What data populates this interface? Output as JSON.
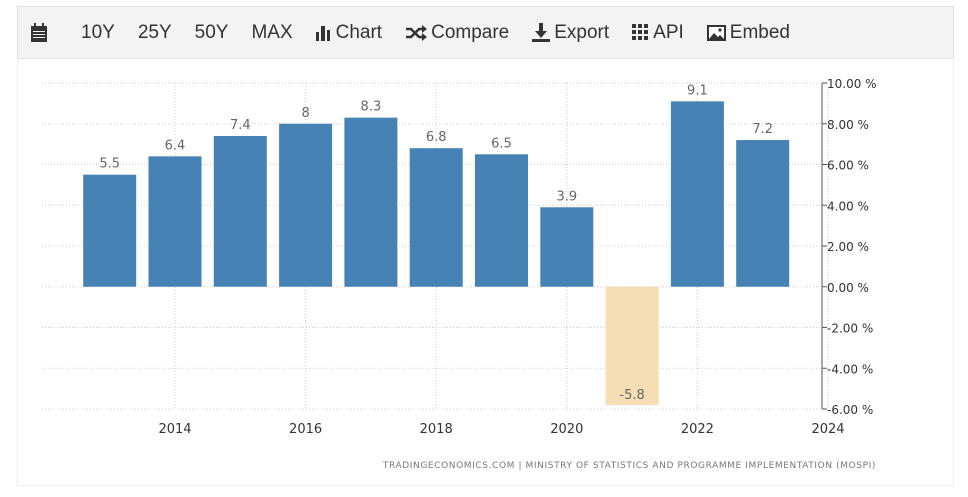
{
  "toolbar": {
    "items": [
      {
        "label": "10Y"
      },
      {
        "label": "25Y"
      },
      {
        "label": "50Y"
      },
      {
        "label": "MAX"
      },
      {
        "label": "Chart",
        "icon": "bar-chart-icon"
      },
      {
        "label": "Compare",
        "icon": "shuffle-icon"
      },
      {
        "label": "Export",
        "icon": "download-icon"
      },
      {
        "label": "API",
        "icon": "grid-icon"
      },
      {
        "label": "Embed",
        "icon": "image-icon"
      }
    ]
  },
  "chart_data": {
    "type": "bar",
    "categories": [
      "2013",
      "2014",
      "2015",
      "2016",
      "2017",
      "2018",
      "2019",
      "2020",
      "2021",
      "2022",
      "2023"
    ],
    "values": [
      5.5,
      6.4,
      7.4,
      8,
      8.3,
      6.8,
      6.5,
      3.9,
      -5.8,
      9.1,
      7.2
    ],
    "data_labels": [
      "5.5",
      "6.4",
      "7.4",
      "8",
      "8.3",
      "6.8",
      "6.5",
      "3.9",
      "-5.8",
      "9.1",
      "7.2"
    ],
    "ylim": [
      -6,
      10
    ],
    "yticks": [
      "10.00 %",
      "8.00 %",
      "6.00 %",
      "4.00 %",
      "2.00 %",
      "0.00 %",
      "-2.00 %",
      "-4.00 %",
      "-6.00 %"
    ],
    "xticks": [
      "2014",
      "2016",
      "2018",
      "2020",
      "2022",
      "2024"
    ],
    "grid": true,
    "yaxis_side": "right",
    "colors": {
      "positive": "#4682b4",
      "negative": "#f5deb3"
    },
    "source": "TRADINGECONOMICS.COM | MINISTRY OF STATISTICS AND PROGRAMME IMPLEMENTATION (MOSPI)"
  }
}
